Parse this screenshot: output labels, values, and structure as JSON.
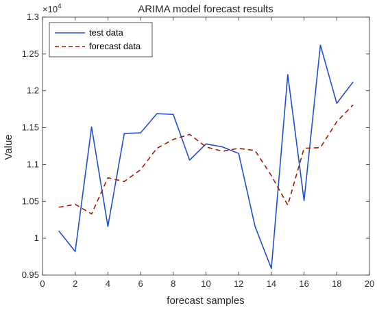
{
  "chart_data": {
    "type": "line",
    "title": "ARIMA model forecast results",
    "xlabel": "forecast samples",
    "ylabel": "Value",
    "y_exponent_label": "×10",
    "y_exponent_power": "4",
    "xlim": [
      0,
      20
    ],
    "ylim": [
      0.95,
      1.3
    ],
    "x_ticks": [
      0,
      2,
      4,
      6,
      8,
      10,
      12,
      14,
      16,
      18,
      20
    ],
    "x_tick_labels": [
      "0",
      "2",
      "4",
      "6",
      "8",
      "10",
      "12",
      "14",
      "16",
      "18",
      "20"
    ],
    "y_ticks": [
      0.95,
      1.0,
      1.05,
      1.1,
      1.15,
      1.2,
      1.25,
      1.3
    ],
    "y_tick_labels": [
      "0.95",
      "1",
      "1.05",
      "1.1",
      "1.15",
      "1.2",
      "1.25",
      "1.3"
    ],
    "grid": false,
    "legend_position": "top-left",
    "x": [
      1,
      2,
      3,
      4,
      5,
      6,
      7,
      8,
      9,
      10,
      11,
      12,
      13,
      14,
      15,
      16,
      17,
      18,
      19
    ],
    "series": [
      {
        "name": "test data",
        "color": "#1f4fd1",
        "style": "solid",
        "values": [
          1.01,
          0.982,
          1.151,
          1.016,
          1.142,
          1.143,
          1.169,
          1.168,
          1.106,
          1.128,
          1.124,
          1.115,
          1.016,
          0.959,
          1.222,
          1.051,
          1.262,
          1.183,
          1.212
        ]
      },
      {
        "name": "forecast data",
        "color": "#a01a00",
        "style": "dashed",
        "values": [
          1.042,
          1.046,
          1.033,
          1.082,
          1.077,
          1.093,
          1.122,
          1.134,
          1.141,
          1.124,
          1.118,
          1.122,
          1.119,
          1.085,
          1.045,
          1.122,
          1.123,
          1.158,
          1.181
        ]
      }
    ]
  }
}
